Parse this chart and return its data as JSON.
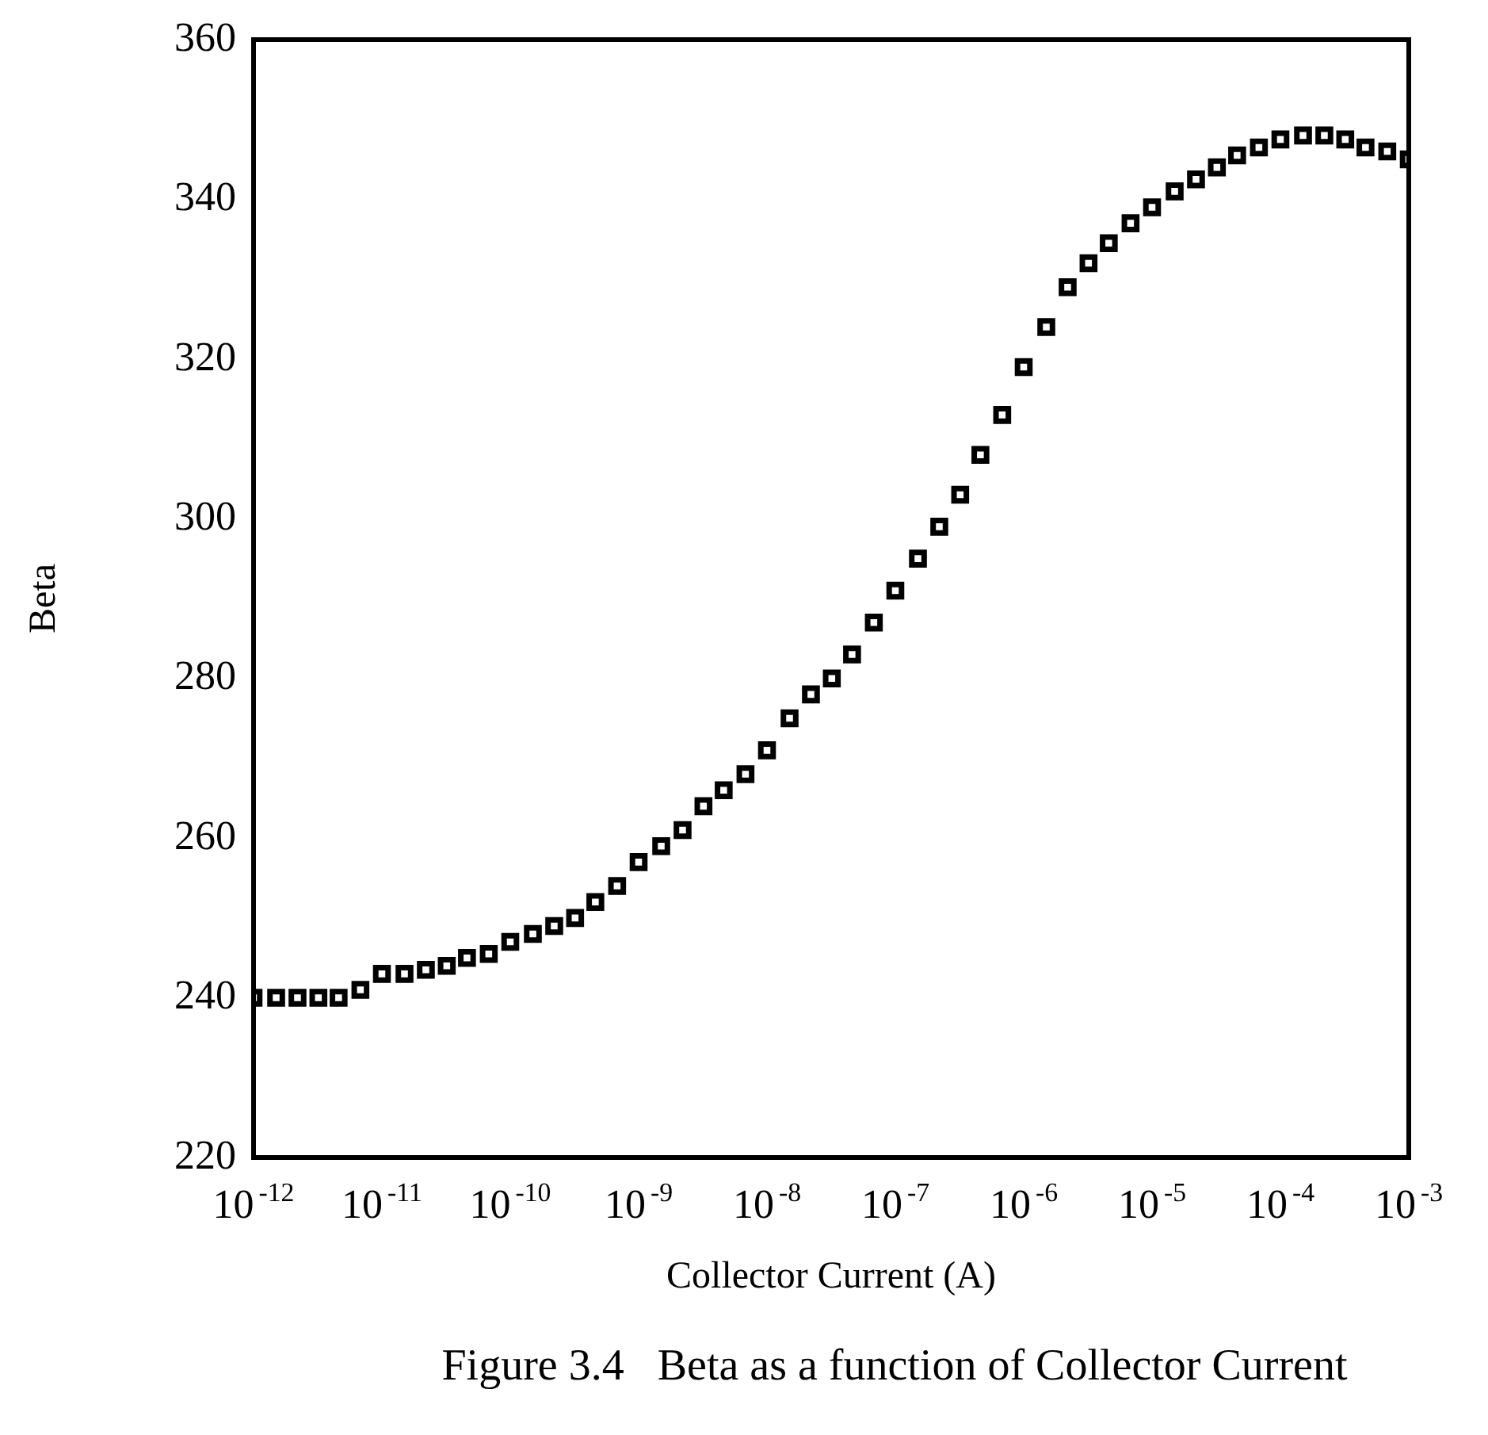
{
  "chart_data": {
    "type": "scatter",
    "xlabel": "Collector Current (A)",
    "ylabel": "Beta",
    "log": "x",
    "marker": "square",
    "grid": false,
    "xlim": [
      1e-12,
      0.001
    ],
    "xticks": [
      {
        "value": 1e-12,
        "label": "10$^{-12}$"
      },
      {
        "value": 1e-11,
        "label": "10$^{-11}$"
      },
      {
        "value": 1e-10,
        "label": "10$^{-10}$"
      },
      {
        "value": 1e-09,
        "label": "10$^{-9}$"
      },
      {
        "value": 1e-08,
        "label": "10$^{-8}$"
      },
      {
        "value": 1e-07,
        "label": "10$^{-7}$"
      },
      {
        "value": 1e-06,
        "label": "10$^{-6}$"
      },
      {
        "value": 1e-05,
        "label": "10$^{-5}$"
      },
      {
        "value": 0.0001,
        "label": "10$^{-4}$"
      },
      {
        "value": 0.001,
        "label": "10$^{-3}$"
      }
    ],
    "ylim": [
      220,
      360
    ],
    "yticks": [
      220,
      240,
      260,
      280,
      300,
      320,
      340,
      360
    ],
    "annotations": [
      "Figure 3.4   Beta as a function of Collector Current"
    ],
    "series": [
      {
        "color": "#000000",
        "x": [
          1e-12,
          1.5e-12,
          2.2e-12,
          3.2e-12,
          4.6e-12,
          6.8e-12,
          1e-11,
          1.5e-11,
          2.2e-11,
          3.2e-11,
          4.6e-11,
          6.8e-11,
          1e-10,
          1.5e-10,
          2.2e-10,
          3.2e-10,
          4.6e-10,
          6.8e-10,
          1e-09,
          1.5e-09,
          2.2e-09,
          3.2e-09,
          4.6e-09,
          6.8e-09,
          1e-08,
          1.5e-08,
          2.2e-08,
          3.2e-08,
          4.6e-08,
          6.8e-08,
          1e-07,
          1.5e-07,
          2.2e-07,
          3.2e-07,
          4.6e-07,
          6.8e-07,
          1e-06,
          1.5e-06,
          2.2e-06,
          3.2e-06,
          4.6e-06,
          6.8e-06,
          1e-05,
          1.5e-05,
          2.2e-05,
          3.2e-05,
          4.6e-05,
          6.8e-05,
          0.0001,
          0.00015,
          0.00022,
          0.00032,
          0.00046,
          0.00068,
          0.001
        ],
        "values": [
          240,
          240,
          240,
          240,
          240,
          241,
          243,
          243,
          243.5,
          244,
          245,
          245.5,
          247,
          248,
          249,
          250,
          252,
          254,
          257,
          259,
          261,
          264,
          266,
          268,
          271,
          275,
          278,
          280,
          283,
          287,
          291,
          295,
          299,
          303,
          308,
          313,
          319,
          324,
          329,
          332,
          334.5,
          337,
          339,
          341,
          342.5,
          344,
          345.5,
          346.5,
          347.5,
          348,
          348,
          347.5,
          346.5,
          346,
          345
        ]
      }
    ]
  }
}
